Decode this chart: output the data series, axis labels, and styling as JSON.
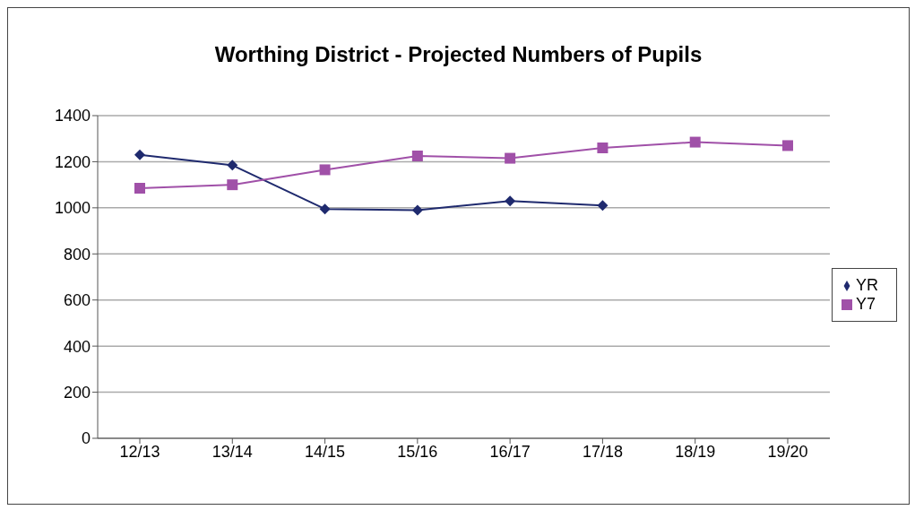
{
  "chart_data": {
    "type": "line",
    "title": "Worthing District - Projected Numbers of Pupils",
    "categories": [
      "12/13",
      "13/14",
      "14/15",
      "15/16",
      "16/17",
      "17/18",
      "18/19",
      "19/20"
    ],
    "series": [
      {
        "name": "YR",
        "color": "#1f2a6e",
        "marker": "diamond",
        "values": [
          1230,
          1185,
          995,
          990,
          1030,
          1010,
          null,
          null
        ]
      },
      {
        "name": "Y7",
        "color": "#a050a8",
        "marker": "square",
        "values": [
          1085,
          1100,
          1165,
          1225,
          1215,
          1260,
          1285,
          1270
        ]
      }
    ],
    "ylim": [
      0,
      1400
    ],
    "yticks": [
      0,
      200,
      400,
      600,
      800,
      1000,
      1200,
      1400
    ],
    "grid": "y",
    "legend": "right"
  }
}
